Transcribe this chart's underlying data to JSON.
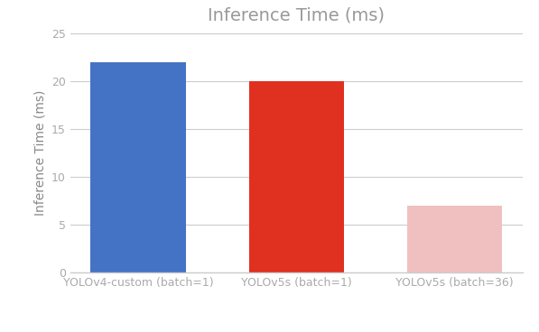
{
  "categories": [
    "YOLOv4-custom (batch=1)",
    "YOLOv5s (batch=1)",
    "YOLOv5s (batch=36)"
  ],
  "values": [
    22,
    20,
    7
  ],
  "bar_colors": [
    "#4472C4",
    "#E03020",
    "#F0C0C0"
  ],
  "title": "Inference Time (ms)",
  "ylabel": "Inference Time (ms)",
  "ylim": [
    0,
    25
  ],
  "yticks": [
    0,
    5,
    10,
    15,
    20,
    25
  ],
  "background_color": "#ffffff",
  "grid_color": "#cccccc",
  "title_color": "#999999",
  "label_color": "#888888",
  "tick_color": "#aaaaaa",
  "bar_width": 0.6,
  "title_fontsize": 14,
  "ylabel_fontsize": 10,
  "tick_fontsize": 9
}
